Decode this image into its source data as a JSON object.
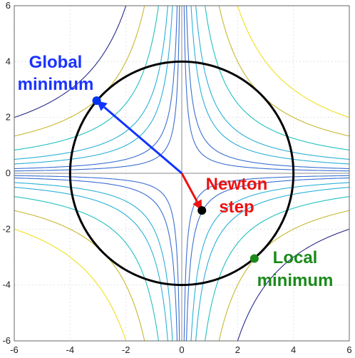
{
  "chart_data": {
    "type": "line",
    "title": "",
    "xlabel": "",
    "ylabel": "",
    "xlim": [
      -6,
      6
    ],
    "ylim": [
      -6,
      6
    ],
    "grid": true,
    "x_ticks": [
      -6,
      -4,
      -2,
      0,
      2,
      4,
      6
    ],
    "y_ticks": [
      -6,
      -4,
      -2,
      0,
      2,
      4,
      6
    ],
    "x_tick_labels": [
      "-6",
      "-4",
      "-2",
      "0",
      "2",
      "4",
      "6"
    ],
    "y_tick_labels": [
      "-6",
      "-4",
      "-2",
      "0",
      "2",
      "4",
      "6"
    ],
    "trust_region": {
      "center": [
        0,
        0
      ],
      "radius": 4,
      "color": "#000000"
    },
    "contour_levels": [
      -12,
      -8,
      -5,
      -3,
      -2,
      -1,
      -0.5,
      0,
      0.5,
      1,
      2,
      3,
      5,
      8,
      12
    ],
    "contour_colors": [
      "#2a2a8a",
      "#3b6fd0",
      "#2bb0d8",
      "#22c0c0",
      "#c8b830",
      "#f0e020"
    ],
    "points": [
      {
        "name": "Global minimum",
        "x": -3.05,
        "y": 2.6,
        "color": "#0033ee"
      },
      {
        "name": "Newton step",
        "x": 0.72,
        "y": -1.33,
        "color": "#000000"
      },
      {
        "name": "Local minimum",
        "x": 2.6,
        "y": -3.05,
        "color": "#1a8a1a"
      }
    ],
    "arrows": [
      {
        "from": [
          0,
          0
        ],
        "to": [
          -3.05,
          2.6
        ],
        "color": "#1133ff"
      },
      {
        "from": [
          0,
          0
        ],
        "to": [
          0.72,
          -1.33
        ],
        "color": "#ee1111"
      }
    ],
    "annotations": {
      "global_line1": "Global",
      "global_line2": "minimum",
      "newton_line1": "Newton",
      "newton_line2": "step",
      "local_line1": "Local",
      "local_line2": "minimum"
    }
  }
}
